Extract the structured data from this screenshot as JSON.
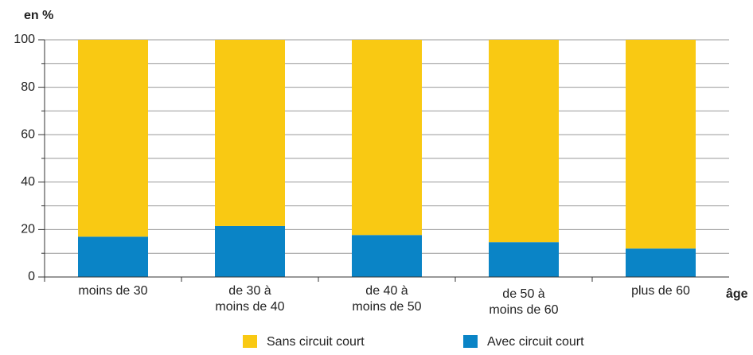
{
  "chart_data": {
    "type": "stacked_bar",
    "y_label": "en %",
    "x_label": "âge",
    "categories": [
      "moins de 30",
      "de 30 à\nmoins de 40",
      "de 40 à\nmoins de 50",
      "de 50 à\nmoins de 60",
      "plus de 60"
    ],
    "series": [
      {
        "name": "Avec circuit court",
        "color": "#0a84c6",
        "values": [
          17,
          21.5,
          17.7,
          14.7,
          12
        ]
      },
      {
        "name": "Sans circuit court",
        "color": "#f9c913",
        "values": [
          83,
          78.5,
          82.3,
          85.3,
          88
        ]
      }
    ],
    "ylim": [
      0,
      100
    ],
    "yticks": [
      0,
      20,
      40,
      60,
      80,
      100
    ],
    "minor_yticks": [
      10,
      30,
      50,
      70,
      90
    ],
    "grid": true
  }
}
